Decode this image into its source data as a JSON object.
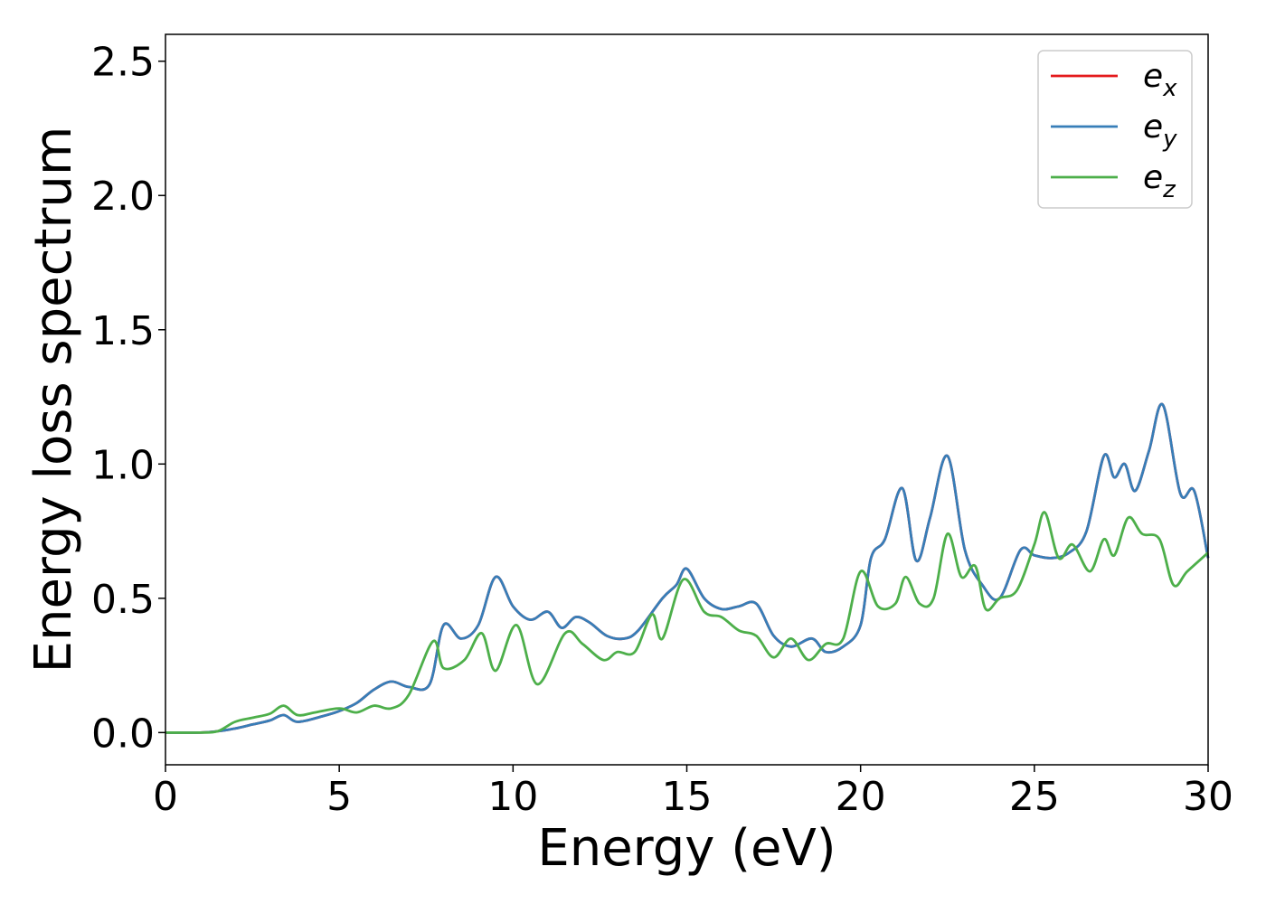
{
  "chart_data": {
    "type": "line",
    "title": "",
    "xlabel": "Energy (eV)",
    "ylabel": "Energy loss spectrum",
    "xlim": [
      0,
      30
    ],
    "ylim": [
      -0.12,
      2.6
    ],
    "xticks": [
      0,
      5,
      10,
      15,
      20,
      25,
      30
    ],
    "xtick_labels": [
      "0",
      "5",
      "10",
      "15",
      "20",
      "25",
      "30"
    ],
    "yticks": [
      0.0,
      0.5,
      1.0,
      1.5,
      2.0,
      2.5
    ],
    "ytick_labels": [
      "0.0",
      "0.5",
      "1.0",
      "1.5",
      "2.0",
      "2.5"
    ],
    "grid": false,
    "legend_position": "top-right",
    "series": [
      {
        "name": "e",
        "subscript": "x",
        "color": "#e41a1c",
        "x": [
          0,
          1,
          1.5,
          2,
          2.5,
          3,
          3.4,
          3.8,
          4.5,
          5,
          5.5,
          6,
          6.5,
          7,
          7.6,
          8,
          8.5,
          9,
          9.5,
          10,
          10.5,
          11,
          11.4,
          11.8,
          12.2,
          12.7,
          13.2,
          13.6,
          14.3,
          14.7,
          15,
          15.5,
          16,
          16.5,
          17,
          17.5,
          18,
          18.6,
          19,
          19.5,
          20,
          20.3,
          20.7,
          21.2,
          21.6,
          22,
          22.5,
          23,
          23.5,
          24,
          24.6,
          25,
          25.5,
          26,
          26.5,
          27,
          27.3,
          27.6,
          27.9,
          28.3,
          28.7,
          29.2,
          29.6,
          30
        ],
        "y": [
          0,
          0,
          0.005,
          0.015,
          0.03,
          0.045,
          0.065,
          0.04,
          0.06,
          0.08,
          0.11,
          0.16,
          0.19,
          0.17,
          0.18,
          0.4,
          0.35,
          0.4,
          0.58,
          0.47,
          0.42,
          0.45,
          0.39,
          0.43,
          0.41,
          0.36,
          0.35,
          0.38,
          0.5,
          0.55,
          0.61,
          0.5,
          0.46,
          0.47,
          0.48,
          0.36,
          0.32,
          0.35,
          0.3,
          0.32,
          0.4,
          0.65,
          0.72,
          0.91,
          0.64,
          0.8,
          1.03,
          0.68,
          0.55,
          0.5,
          0.68,
          0.66,
          0.65,
          0.67,
          0.75,
          1.03,
          0.95,
          1.0,
          0.9,
          1.05,
          1.22,
          0.89,
          0.9,
          0.65
        ]
      },
      {
        "name": "e",
        "subscript": "y",
        "color": "#377eb8",
        "x": [
          0,
          1,
          1.5,
          2,
          2.5,
          3,
          3.4,
          3.8,
          4.5,
          5,
          5.5,
          6,
          6.5,
          7,
          7.6,
          8,
          8.5,
          9,
          9.5,
          10,
          10.5,
          11,
          11.4,
          11.8,
          12.2,
          12.7,
          13.2,
          13.6,
          14.3,
          14.7,
          15,
          15.5,
          16,
          16.5,
          17,
          17.5,
          18,
          18.6,
          19,
          19.5,
          20,
          20.3,
          20.7,
          21.2,
          21.6,
          22,
          22.5,
          23,
          23.5,
          24,
          24.6,
          25,
          25.5,
          26,
          26.5,
          27,
          27.3,
          27.6,
          27.9,
          28.3,
          28.7,
          29.2,
          29.6,
          30
        ],
        "y": [
          0,
          0,
          0.005,
          0.015,
          0.03,
          0.045,
          0.065,
          0.04,
          0.06,
          0.08,
          0.11,
          0.16,
          0.19,
          0.17,
          0.18,
          0.4,
          0.35,
          0.4,
          0.58,
          0.47,
          0.42,
          0.45,
          0.39,
          0.43,
          0.41,
          0.36,
          0.35,
          0.38,
          0.5,
          0.55,
          0.61,
          0.5,
          0.46,
          0.47,
          0.48,
          0.36,
          0.32,
          0.35,
          0.3,
          0.32,
          0.4,
          0.65,
          0.72,
          0.91,
          0.64,
          0.8,
          1.03,
          0.68,
          0.55,
          0.5,
          0.68,
          0.66,
          0.65,
          0.67,
          0.75,
          1.03,
          0.95,
          1.0,
          0.9,
          1.05,
          1.22,
          0.89,
          0.9,
          0.65
        ]
      },
      {
        "name": "e",
        "subscript": "z",
        "color": "#4daf4a",
        "x": [
          0,
          1,
          1.5,
          2,
          2.5,
          3,
          3.4,
          3.8,
          4.3,
          5,
          5.5,
          6,
          6.5,
          7,
          7.7,
          8,
          8.6,
          9.1,
          9.5,
          10.1,
          10.7,
          11.5,
          12,
          12.6,
          13,
          13.5,
          14,
          14.3,
          14.9,
          15.5,
          16,
          16.5,
          17,
          17.5,
          18,
          18.5,
          19,
          19.5,
          20,
          20.5,
          21,
          21.3,
          21.7,
          22.1,
          22.5,
          22.9,
          23.3,
          23.6,
          24,
          24.5,
          25,
          25.3,
          25.7,
          26.1,
          26.6,
          27,
          27.3,
          27.7,
          28.1,
          28.6,
          29,
          29.4,
          30
        ],
        "y": [
          0,
          0,
          0.005,
          0.04,
          0.055,
          0.07,
          0.1,
          0.065,
          0.075,
          0.09,
          0.075,
          0.1,
          0.09,
          0.14,
          0.34,
          0.24,
          0.27,
          0.37,
          0.23,
          0.4,
          0.18,
          0.37,
          0.33,
          0.27,
          0.3,
          0.3,
          0.44,
          0.35,
          0.57,
          0.45,
          0.43,
          0.38,
          0.36,
          0.28,
          0.35,
          0.27,
          0.33,
          0.35,
          0.6,
          0.47,
          0.48,
          0.58,
          0.48,
          0.5,
          0.74,
          0.58,
          0.62,
          0.46,
          0.5,
          0.53,
          0.7,
          0.82,
          0.65,
          0.7,
          0.6,
          0.72,
          0.66,
          0.8,
          0.74,
          0.72,
          0.55,
          0.6,
          0.67
        ]
      }
    ]
  }
}
